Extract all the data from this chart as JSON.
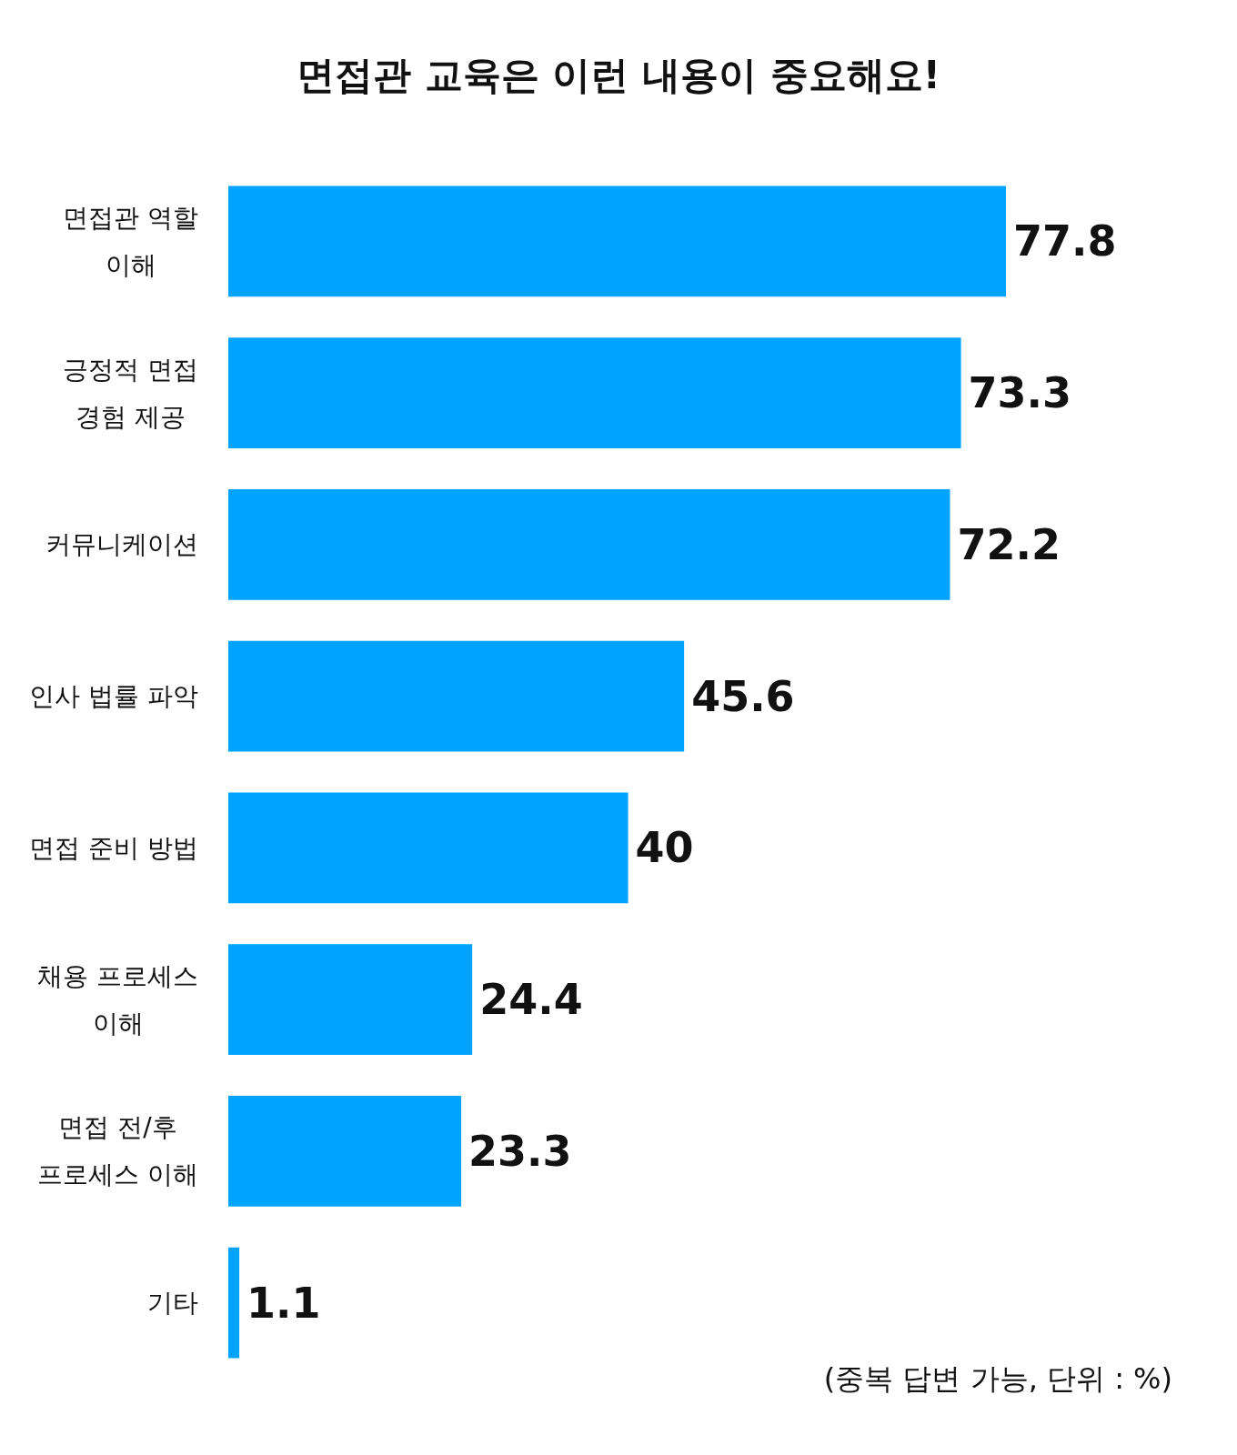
{
  "chart_data": {
    "type": "bar",
    "orientation": "horizontal",
    "title": "면접관 교육은 이런 내용이 중요해요!",
    "categories": [
      "면접관 역할 이해",
      "긍정적 면접 경험 제공",
      "커뮤니케이션",
      "인사 법률 파악",
      "면접 준비 방법",
      "채용 프로세스 이해",
      "면접 전/후 프로세스 이해",
      "기타"
    ],
    "values": [
      77.8,
      73.3,
      72.2,
      45.6,
      40,
      24.4,
      23.3,
      1.1
    ],
    "color": "#00a3ff",
    "data_labels": true,
    "annotations": [
      "(중복 답변 가능, 단위 : %)"
    ]
  }
}
